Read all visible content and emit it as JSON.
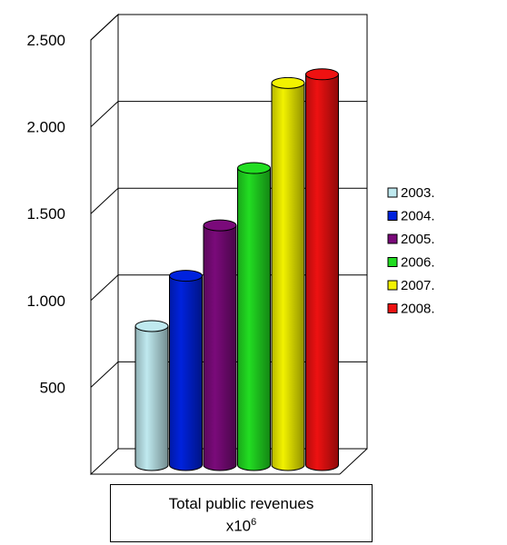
{
  "chart_data": {
    "type": "bar",
    "style": "3d-cylinder",
    "categories": [
      "Total public revenues"
    ],
    "xlabel_line1": "Total public revenues",
    "xlabel_line2_base": "x10",
    "xlabel_line2_exp": "6",
    "ylim": [
      0,
      2500
    ],
    "yticks": [
      {
        "value": 500,
        "label": "500"
      },
      {
        "value": 1000,
        "label": "1.000"
      },
      {
        "value": 1500,
        "label": "1.500"
      },
      {
        "value": 2000,
        "label": "2.000"
      },
      {
        "value": 2500,
        "label": "2.500"
      }
    ],
    "grid": true,
    "legend_position": "right",
    "series": [
      {
        "name": "2003.",
        "value": 800,
        "color": "#bfe9ef"
      },
      {
        "name": "2004.",
        "value": 1090,
        "color": "#0022dd"
      },
      {
        "name": "2005.",
        "value": 1380,
        "color": "#7a0a7a"
      },
      {
        "name": "2006.",
        "value": 1710,
        "color": "#22dd22"
      },
      {
        "name": "2007.",
        "value": 2200,
        "color": "#f2f200"
      },
      {
        "name": "2008.",
        "value": 2250,
        "color": "#ee1111"
      }
    ]
  }
}
